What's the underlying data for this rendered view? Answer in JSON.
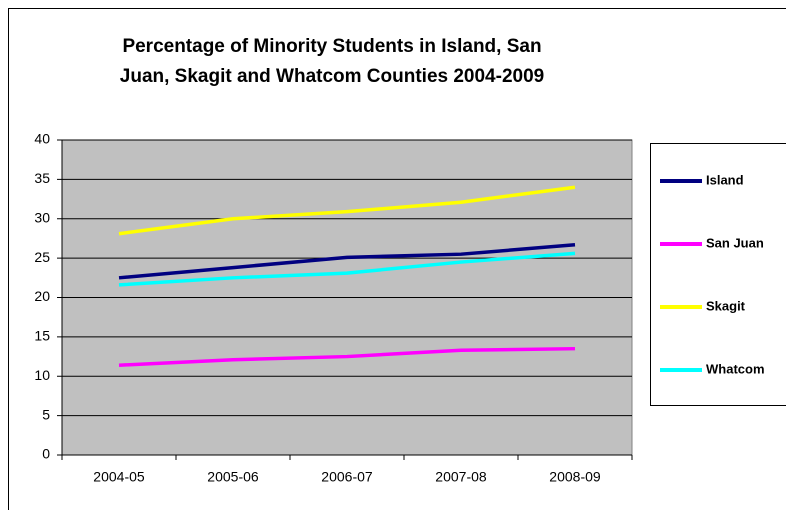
{
  "chart_data": {
    "type": "line",
    "title": "Percentage of Minority Students in Island, San Juan, Skagit and Whatcom Counties 2004-2009",
    "categories": [
      "2004-05",
      "2005-06",
      "2006-07",
      "2007-08",
      "2008-09"
    ],
    "series": [
      {
        "name": "Island",
        "color": "#000080",
        "values": [
          22.5,
          23.8,
          25.1,
          25.5,
          26.7
        ]
      },
      {
        "name": "San Juan",
        "color": "#ff00ff",
        "values": [
          11.4,
          12.1,
          12.5,
          13.3,
          13.5
        ]
      },
      {
        "name": "Skagit",
        "color": "#ffff00",
        "values": [
          28.1,
          30.0,
          30.9,
          32.1,
          34.0
        ]
      },
      {
        "name": "Whatcom",
        "color": "#00ffff",
        "values": [
          21.6,
          22.5,
          23.1,
          24.5,
          25.6
        ]
      }
    ],
    "ylim": [
      0,
      40
    ],
    "yticks": [
      0,
      5,
      10,
      15,
      20,
      25,
      30,
      35,
      40
    ],
    "grid": true,
    "legend": "right"
  }
}
